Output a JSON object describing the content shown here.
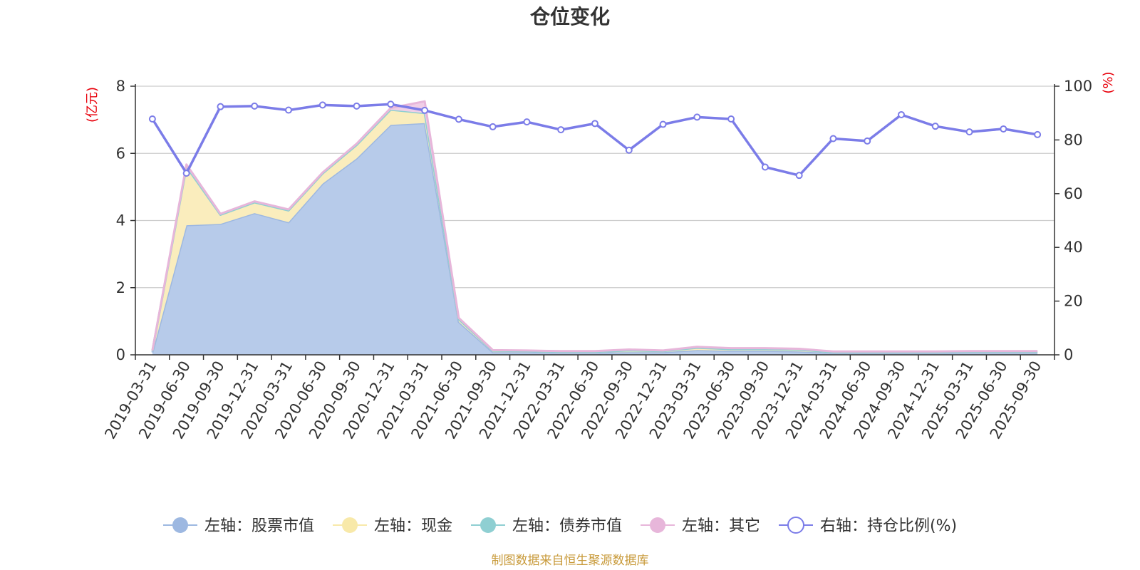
{
  "chart_data": {
    "type": "area",
    "title": "仓位变化",
    "left_axis": {
      "unit": "(亿元)",
      "ylim": [
        0,
        8
      ],
      "ticks": [
        "0",
        "2",
        "4",
        "6",
        "8"
      ],
      "color": "#e8000b"
    },
    "right_axis": {
      "unit": "(%)",
      "ylim": [
        0,
        100
      ],
      "ticks": [
        "0",
        "20",
        "40",
        "60",
        "80",
        "100"
      ],
      "color": "#e8000b"
    },
    "categories": [
      "2019-03-31",
      "2019-06-30",
      "2019-09-30",
      "2019-12-31",
      "2020-03-31",
      "2020-06-30",
      "2020-09-30",
      "2020-12-31",
      "2021-03-31",
      "2021-06-30",
      "2021-09-30",
      "2021-12-31",
      "2022-03-31",
      "2022-06-30",
      "2022-09-30",
      "2022-12-31",
      "2023-03-31",
      "2023-06-30",
      "2023-09-30",
      "2023-12-31",
      "2024-03-31",
      "2024-06-30",
      "2024-09-30",
      "2024-12-31",
      "2025-03-31",
      "2025-06-30",
      "2025-09-30"
    ],
    "series": [
      {
        "name": "左轴：股票市值",
        "axis": "left",
        "kind": "stacked-area",
        "color": "#9db8e1",
        "fill": "#b7cbea",
        "values": [
          0.07,
          3.86,
          3.9,
          4.22,
          3.95,
          5.1,
          5.85,
          6.85,
          6.9,
          0.98,
          0.08,
          0.08,
          0.07,
          0.07,
          0.08,
          0.08,
          0.14,
          0.12,
          0.12,
          0.1,
          0.06,
          0.06,
          0.06,
          0.06,
          0.07,
          0.07,
          0.07
        ]
      },
      {
        "name": "左轴：现金",
        "axis": "left",
        "kind": "stacked-area",
        "color": "#f8e9a9",
        "fill": "#faedbd",
        "values": [
          0.05,
          1.74,
          0.27,
          0.32,
          0.35,
          0.3,
          0.4,
          0.45,
          0.3,
          0.08,
          0.04,
          0.03,
          0.02,
          0.02,
          0.05,
          0.03,
          0.07,
          0.05,
          0.05,
          0.05,
          0.02,
          0.02,
          0.02,
          0.02,
          0.02,
          0.02,
          0.02
        ]
      },
      {
        "name": "左轴：债券市值",
        "axis": "left",
        "kind": "stacked-area",
        "color": "#8fcfd2",
        "fill": "#b3dfe1",
        "values": [
          0,
          0,
          0,
          0,
          0,
          0,
          0,
          0,
          0,
          0,
          0,
          0,
          0,
          0,
          0,
          0,
          0,
          0,
          0,
          0,
          0,
          0,
          0,
          0,
          0,
          0,
          0
        ]
      },
      {
        "name": "左轴：其它",
        "axis": "left",
        "kind": "stacked-area",
        "color": "#e7b6da",
        "fill": "#f0cee7",
        "values": [
          0.01,
          0.07,
          0.03,
          0.03,
          0.03,
          0.03,
          0.04,
          0.05,
          0.35,
          0.04,
          0.02,
          0.02,
          0.02,
          0.02,
          0.03,
          0.02,
          0.03,
          0.03,
          0.03,
          0.03,
          0.02,
          0.02,
          0.02,
          0.02,
          0.02,
          0.02,
          0.02
        ]
      },
      {
        "name": "右轴：持仓比例(%)",
        "axis": "right",
        "kind": "line",
        "color": "#7b7ce8",
        "values": [
          87.8,
          67.6,
          92.4,
          92.6,
          91.1,
          93.0,
          92.6,
          93.3,
          91.0,
          87.7,
          84.9,
          86.7,
          83.8,
          86.1,
          76.2,
          85.8,
          88.5,
          87.8,
          69.9,
          66.8,
          80.5,
          79.6,
          89.4,
          85.1,
          83.0,
          84.1,
          82.0
        ]
      }
    ],
    "legend_position": "bottom-center",
    "source_note": "制图数据来自恒生聚源数据库",
    "source_color": "#c89a3a"
  }
}
